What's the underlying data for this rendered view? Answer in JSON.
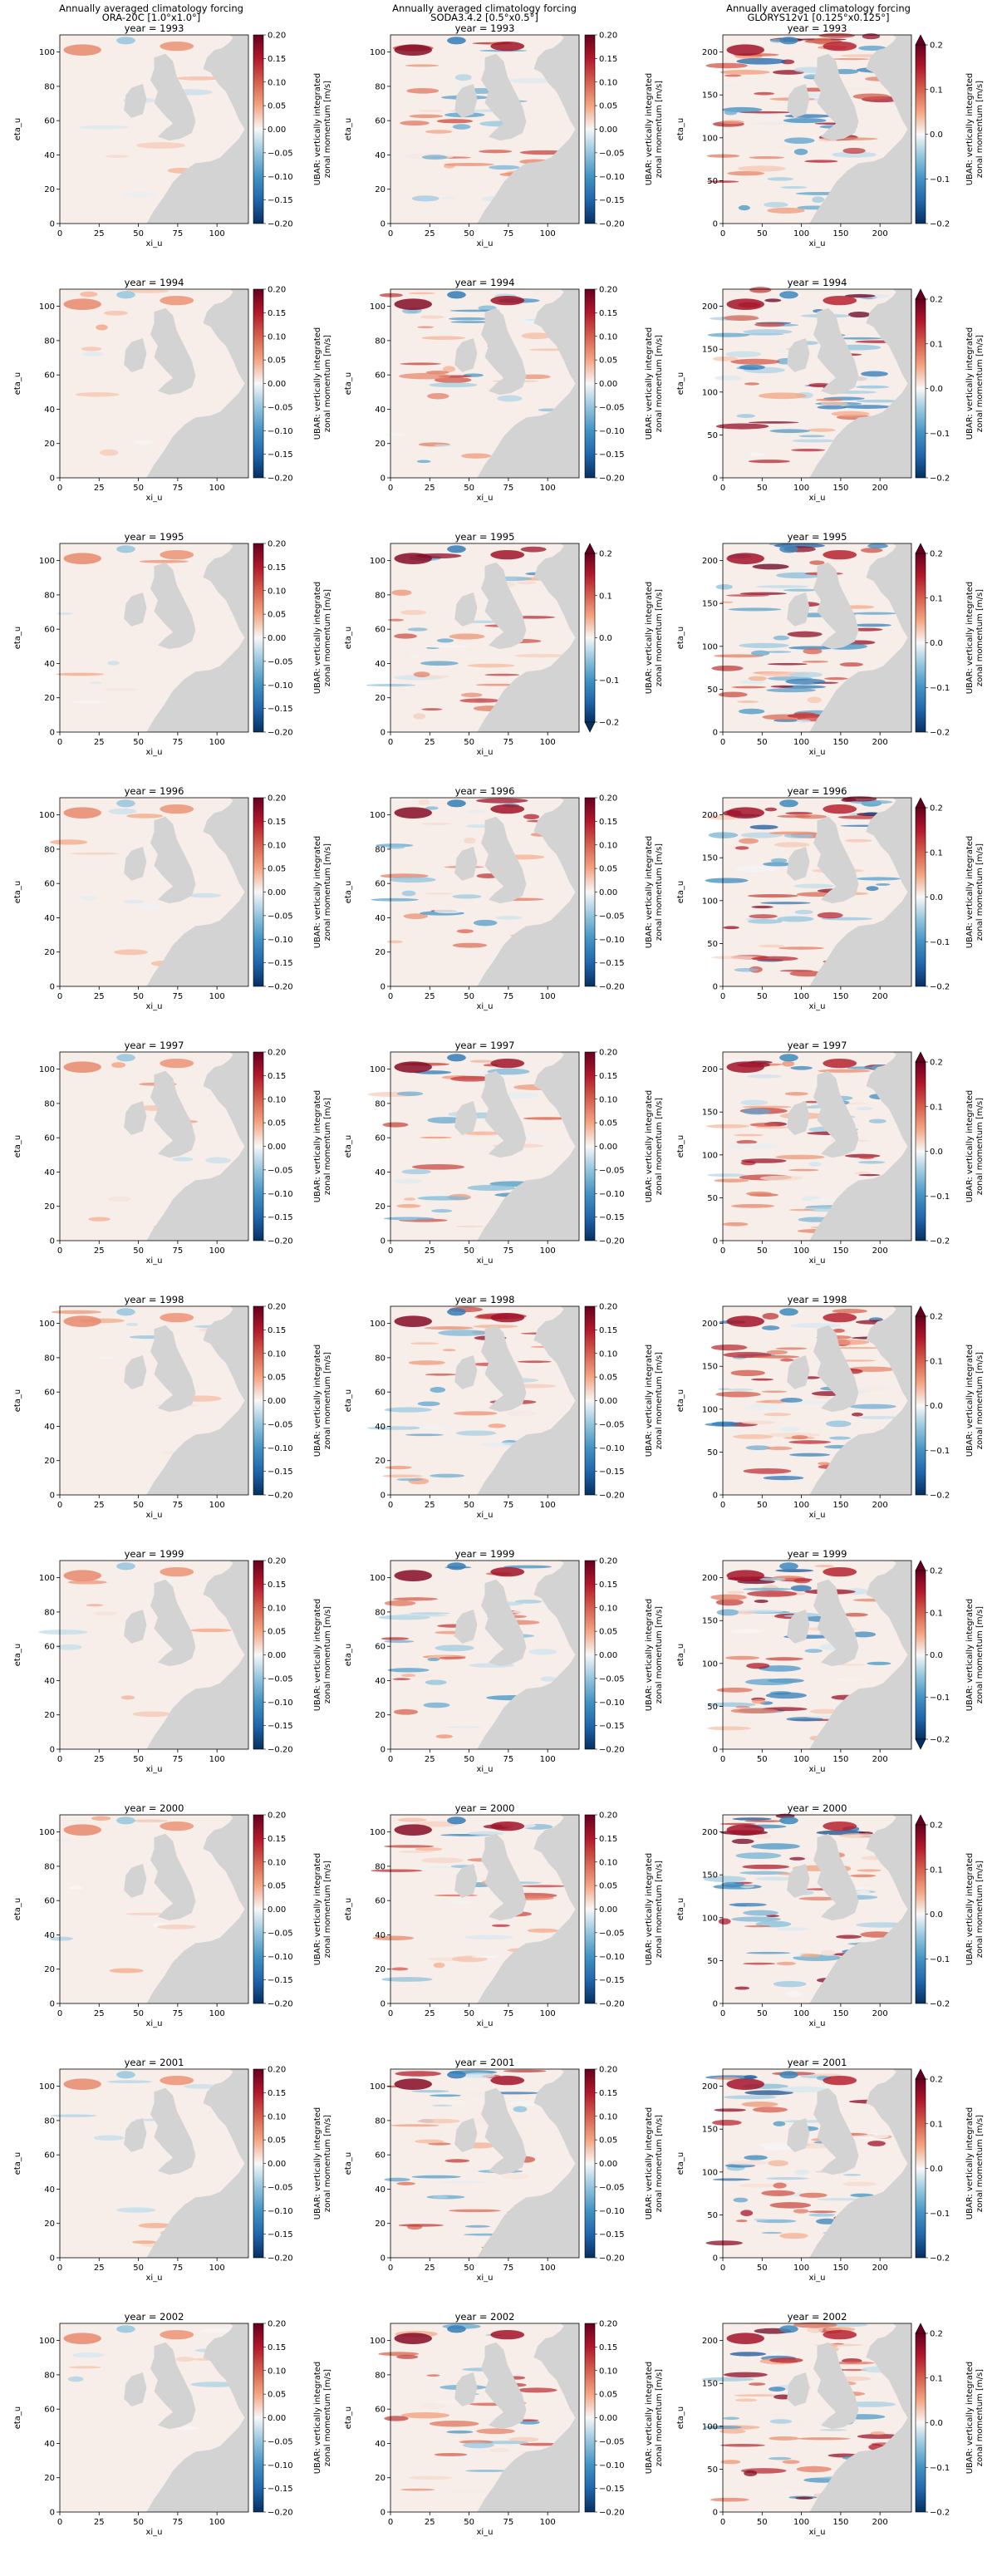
{
  "figure": {
    "column_titles": [
      [
        "Annually averaged climatology forcing",
        "ORA-20C [1.0°x1.0°]"
      ],
      [
        "Annually averaged climatology forcing",
        "SODA3.4.2 [0.5°x0.5°]"
      ],
      [
        "Annually averaged climatology forcing",
        "GLORYS12v1 [0.125°x0.125°]"
      ]
    ],
    "colormap": "RdBu_r",
    "land_color": "#d3d3d3",
    "colorbar_label": [
      "UBAR: vertically integrated",
      "zonal momentum [m/s]"
    ],
    "xlabel": "xi_u",
    "ylabel": "eta_u",
    "year_prefix": "year = "
  },
  "chart_data": [
    {
      "type": "heatmap",
      "column": "ORA-20C [1.0°x1.0°]",
      "panels": [
        {
          "year": 1993
        },
        {
          "year": 1994
        },
        {
          "year": 1995
        },
        {
          "year": 1996
        },
        {
          "year": 1997
        },
        {
          "year": 1998
        },
        {
          "year": 1999
        },
        {
          "year": 2000
        },
        {
          "year": 2001
        },
        {
          "year": 2002
        }
      ],
      "xticks": [
        0,
        25,
        50,
        75,
        100
      ],
      "yticks": [
        0,
        20,
        40,
        60,
        80,
        100
      ],
      "xlim": [
        0,
        120
      ],
      "ylim": [
        0,
        110
      ],
      "colorbar": {
        "ticks": [
          "0.20",
          "0.15",
          "0.10",
          "0.05",
          "0.00",
          "−0.05",
          "−0.10",
          "−0.15",
          "−0.20"
        ],
        "range": [
          -0.2,
          0.2
        ],
        "extend": "neither"
      },
      "intensity": 0.25
    },
    {
      "type": "heatmap",
      "column": "SODA3.4.2 [0.5°x0.5°]",
      "panels": [
        {
          "year": 1993
        },
        {
          "year": 1994
        },
        {
          "year": 1995,
          "extend": "both"
        },
        {
          "year": 1996
        },
        {
          "year": 1997
        },
        {
          "year": 1998
        },
        {
          "year": 1999
        },
        {
          "year": 2000
        },
        {
          "year": 2001
        },
        {
          "year": 2002
        }
      ],
      "xticks": [
        0,
        25,
        50,
        75,
        100
      ],
      "yticks": [
        0,
        20,
        40,
        60,
        80,
        100
      ],
      "xlim": [
        0,
        120
      ],
      "ylim": [
        0,
        110
      ],
      "colorbar": {
        "ticks": [
          "0.20",
          "0.15",
          "0.10",
          "0.05",
          "0.00",
          "−0.05",
          "−0.10",
          "−0.15",
          "−0.20"
        ],
        "range": [
          -0.2,
          0.2
        ],
        "extend": "neither"
      },
      "colorbar_alt": {
        "ticks": [
          "0.2",
          "0.1",
          "0.0",
          "−0.1",
          "−0.2"
        ]
      },
      "intensity": 0.6
    },
    {
      "type": "heatmap",
      "column": "GLORYS12v1 [0.125°x0.125°]",
      "panels": [
        {
          "year": 1993
        },
        {
          "year": 1994
        },
        {
          "year": 1995
        },
        {
          "year": 1996
        },
        {
          "year": 1997
        },
        {
          "year": 1998
        },
        {
          "year": 1999,
          "extend": "both"
        },
        {
          "year": 2000
        },
        {
          "year": 2001
        },
        {
          "year": 2002
        }
      ],
      "xticks": [
        0,
        50,
        100,
        150,
        200
      ],
      "yticks": [
        0,
        50,
        100,
        150,
        200
      ],
      "xlim": [
        0,
        240
      ],
      "ylim": [
        0,
        220
      ],
      "colorbar": {
        "ticks": [
          "0.2",
          "0.1",
          "0.0",
          "−0.1",
          "−0.2"
        ],
        "range": [
          -0.2,
          0.2
        ],
        "extend": "max"
      },
      "intensity": 0.8
    }
  ]
}
